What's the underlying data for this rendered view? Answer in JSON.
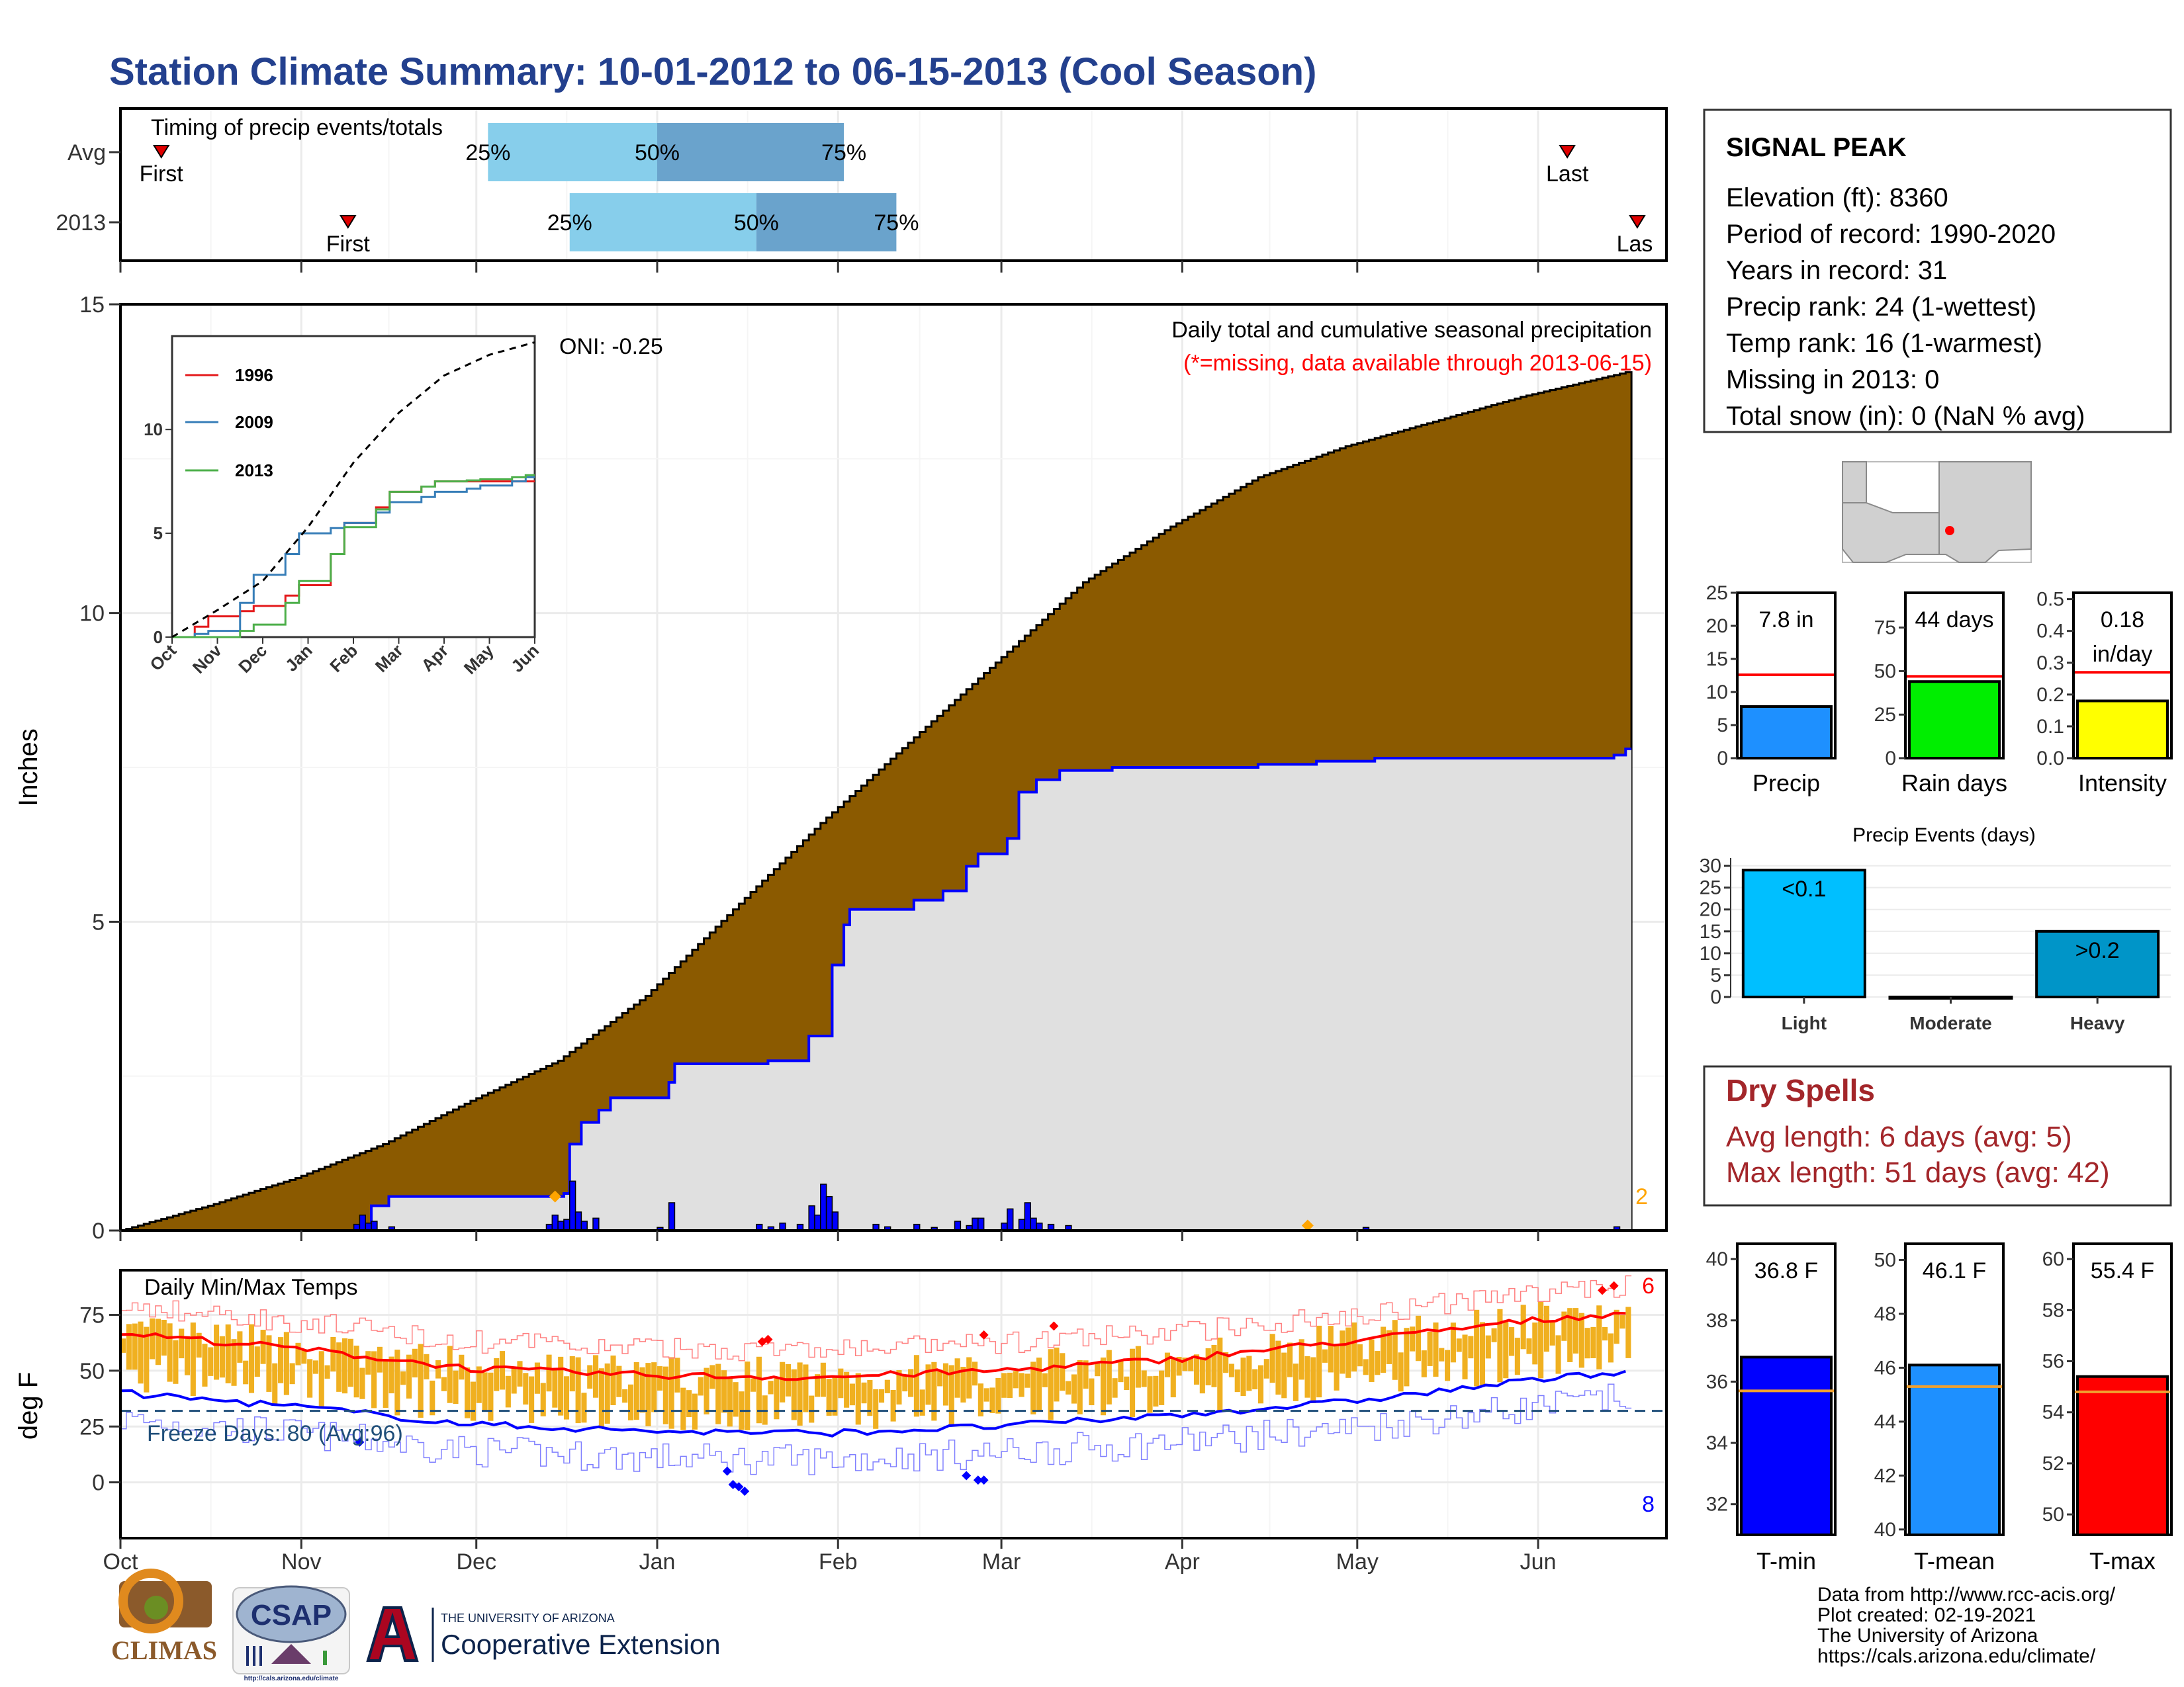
{
  "title": "Station Climate Summary: 10-01-2012 to 06-15-2013 (Cool Season)",
  "months": [
    "Oct",
    "Nov",
    "Dec",
    "Jan",
    "Feb",
    "Mar",
    "Apr",
    "May",
    "Jun"
  ],
  "timing_panel": {
    "label": "Timing of precip events/totals",
    "rows": [
      "Avg",
      "2013"
    ],
    "first_label": "First",
    "last_label": "Last",
    "last_label_clipped": "Las",
    "pct_labels": [
      "25%",
      "50%",
      "75%"
    ]
  },
  "precip_panel": {
    "ylabel": "Inches",
    "yticks": [
      "0",
      "5",
      "10",
      "15"
    ],
    "oni": "ONI: -0.25",
    "caption": "Daily total and cumulative seasonal precipitation",
    "missing_note": "(*=missing, data available through 2013-06-15)",
    "corner_count": "2"
  },
  "inset": {
    "series": [
      "1996",
      "2009",
      "2013"
    ],
    "yticks": [
      "0",
      "5",
      "10"
    ],
    "xticks": [
      "Oct",
      "Nov",
      "Dec",
      "Jan",
      "Feb",
      "Mar",
      "Apr",
      "May",
      "Jun"
    ]
  },
  "temp_panel": {
    "label": "Daily Min/Max Temps",
    "ylabel": "deg F",
    "yticks": [
      "0",
      "25",
      "50",
      "75"
    ],
    "freeze": "Freeze Days: 80 (Avg:96)",
    "top_count": "6",
    "bottom_count": "8"
  },
  "station": {
    "name": "SIGNAL PEAK",
    "lines": [
      "Elevation (ft): 8360",
      "Period of record: 1990-2020",
      "Years in record: 31",
      "Precip rank: 24 (1-wettest)",
      "Temp rank: 16 (1-warmest)",
      "Missing in 2013: 0",
      "Total snow (in): 0 (NaN % avg)"
    ]
  },
  "summary_bars": {
    "precip": {
      "label": "Precip",
      "value_label": "7.8 in",
      "yticks": [
        "0",
        "5",
        "10",
        "15",
        "20",
        "25"
      ]
    },
    "raindays": {
      "label": "Rain days",
      "value_label": "44 days",
      "yticks": [
        "0",
        "25",
        "50",
        "75"
      ]
    },
    "intensity": {
      "label": "Intensity",
      "value_label_1": "0.18",
      "value_label_2": "in/day",
      "yticks": [
        "0.0",
        "0.1",
        "0.2",
        "0.3",
        "0.4",
        "0.5"
      ]
    }
  },
  "precip_events": {
    "title": "Precip Events (days)",
    "yticks": [
      "0",
      "5",
      "10",
      "15",
      "20",
      "25",
      "30"
    ],
    "cats": [
      "Light",
      "Moderate",
      "Heavy"
    ],
    "bar_labels": [
      "<0.1",
      "",
      ">0.2"
    ]
  },
  "dry_spells": {
    "title": "Dry Spells",
    "avg": "Avg length: 6 days (avg: 5)",
    "max": "Max length: 51 days (avg: 42)"
  },
  "temp_bars": {
    "tmin": {
      "label": "T-min",
      "value_label": "36.8 F",
      "yticks": [
        "32",
        "34",
        "36",
        "38",
        "40"
      ]
    },
    "tmean": {
      "label": "T-mean",
      "value_label": "46.1 F",
      "yticks": [
        "40",
        "42",
        "44",
        "46",
        "48",
        "50"
      ]
    },
    "tmax": {
      "label": "T-max",
      "value_label": "55.4 F",
      "yticks": [
        "50",
        "52",
        "54",
        "56",
        "58",
        "60"
      ]
    }
  },
  "footer": {
    "lines": [
      "Data from http://www.rcc-acis.org/",
      "Plot created: 02-19-2021",
      "The University of Arizona",
      "https://cals.arizona.edu/climate/"
    ],
    "ua_small": "THE UNIVERSITY OF ARIZONA",
    "ua_big": "Cooperative Extension",
    "climas": "CLIMAS",
    "csap": "CSAP",
    "csap_url": "http://cals.arizona.edu/climate"
  },
  "chart_data": [
    {
      "type": "bar",
      "name": "timing",
      "rows": [
        "Avg",
        "2013"
      ],
      "first_day": [
        7,
        39
      ],
      "last_day": [
        248,
        260
      ],
      "q25": [
        63,
        77
      ],
      "q50": [
        92,
        109
      ],
      "q75": [
        124,
        133
      ],
      "x_range_days": [
        0,
        265
      ]
    },
    {
      "type": "area",
      "name": "precipitation",
      "ylabel": "Inches",
      "ylim": [
        0,
        15
      ],
      "avg_cumulative": [
        [
          0,
          0
        ],
        [
          15,
          0.4
        ],
        [
          30,
          0.85
        ],
        [
          45,
          1.4
        ],
        [
          60,
          2.1
        ],
        [
          75,
          2.75
        ],
        [
          90,
          3.8
        ],
        [
          105,
          5.2
        ],
        [
          120,
          6.6
        ],
        [
          135,
          7.9
        ],
        [
          150,
          9.2
        ],
        [
          165,
          10.5
        ],
        [
          180,
          11.4
        ],
        [
          195,
          12.2
        ],
        [
          210,
          12.7
        ],
        [
          225,
          13.1
        ],
        [
          240,
          13.5
        ],
        [
          258,
          13.9
        ]
      ],
      "obs_cumulative": [
        [
          0,
          0
        ],
        [
          39,
          0
        ],
        [
          43,
          0.4
        ],
        [
          46,
          0.55
        ],
        [
          76,
          0.6
        ],
        [
          77,
          1.4
        ],
        [
          79,
          1.75
        ],
        [
          82,
          1.95
        ],
        [
          84,
          2.15
        ],
        [
          94,
          2.4
        ],
        [
          95,
          2.7
        ],
        [
          111,
          2.75
        ],
        [
          118,
          3.15
        ],
        [
          122,
          4.3
        ],
        [
          124,
          4.95
        ],
        [
          125,
          5.2
        ],
        [
          136,
          5.35
        ],
        [
          141,
          5.5
        ],
        [
          145,
          5.9
        ],
        [
          147,
          6.1
        ],
        [
          152,
          6.35
        ],
        [
          154,
          7.1
        ],
        [
          157,
          7.3
        ],
        [
          161,
          7.45
        ],
        [
          170,
          7.5
        ],
        [
          195,
          7.55
        ],
        [
          205,
          7.6
        ],
        [
          215,
          7.65
        ],
        [
          256,
          7.7
        ],
        [
          258,
          7.8
        ]
      ],
      "daily_bars": [
        [
          40,
          0.1
        ],
        [
          41,
          0.25
        ],
        [
          42,
          0.12
        ],
        [
          43,
          0.15
        ],
        [
          46,
          0.06
        ],
        [
          73,
          0.1
        ],
        [
          74,
          0.25
        ],
        [
          75,
          0.15
        ],
        [
          76,
          0.18
        ],
        [
          77,
          0.8
        ],
        [
          78,
          0.3
        ],
        [
          79,
          0.15
        ],
        [
          81,
          0.2
        ],
        [
          92,
          0.05
        ],
        [
          94,
          0.45
        ],
        [
          109,
          0.1
        ],
        [
          111,
          0.06
        ],
        [
          113,
          0.12
        ],
        [
          116,
          0.1
        ],
        [
          118,
          0.4
        ],
        [
          119,
          0.25
        ],
        [
          120,
          0.75
        ],
        [
          121,
          0.55
        ],
        [
          122,
          0.3
        ],
        [
          129,
          0.1
        ],
        [
          131,
          0.06
        ],
        [
          136,
          0.1
        ],
        [
          139,
          0.05
        ],
        [
          143,
          0.15
        ],
        [
          145,
          0.08
        ],
        [
          146,
          0.2
        ],
        [
          147,
          0.2
        ],
        [
          151,
          0.12
        ],
        [
          152,
          0.35
        ],
        [
          154,
          0.18
        ],
        [
          155,
          0.45
        ],
        [
          156,
          0.2
        ],
        [
          157,
          0.12
        ],
        [
          159,
          0.1
        ],
        [
          162,
          0.08
        ],
        [
          213,
          0.05
        ],
        [
          256,
          0.06
        ]
      ],
      "missing_days": [
        74,
        203
      ],
      "ONI": -0.25
    },
    {
      "type": "line",
      "name": "inset_cumulative",
      "x": [
        "Oct",
        "Nov",
        "Dec",
        "Jan",
        "Feb",
        "Mar",
        "Apr",
        "May",
        "Jun"
      ],
      "ylim": [
        0,
        14.5
      ],
      "series": [
        {
          "name": "1996",
          "values": [
            0,
            1.0,
            1.5,
            2.5,
            5.5,
            7.0,
            7.5,
            7.5,
            7.5
          ]
        },
        {
          "name": "2009",
          "values": [
            0,
            0.3,
            3.0,
            5.0,
            5.5,
            6.5,
            7.0,
            7.3,
            7.7
          ]
        },
        {
          "name": "2013",
          "values": [
            0,
            0,
            0.6,
            2.7,
            5.3,
            7.0,
            7.5,
            7.6,
            7.8
          ]
        },
        {
          "name": "",
          "values": [
            0,
            1.3,
            2.7,
            5.3,
            8.4,
            10.8,
            12.6,
            13.6,
            14.2
          ]
        }
      ]
    },
    {
      "type": "line",
      "name": "temperature",
      "ylabel": "deg F",
      "ylim": [
        -25,
        95
      ],
      "avg_max": [
        [
          0,
          67
        ],
        [
          30,
          60
        ],
        [
          60,
          51
        ],
        [
          90,
          48
        ],
        [
          120,
          47
        ],
        [
          150,
          50
        ],
        [
          180,
          55
        ],
        [
          210,
          63
        ],
        [
          240,
          72
        ],
        [
          258,
          76
        ]
      ],
      "avg_min": [
        [
          0,
          40
        ],
        [
          30,
          34
        ],
        [
          60,
          26
        ],
        [
          90,
          23
        ],
        [
          120,
          22
        ],
        [
          150,
          25
        ],
        [
          180,
          30
        ],
        [
          210,
          36
        ],
        [
          240,
          45
        ],
        [
          258,
          50
        ]
      ],
      "freeze_line": 32,
      "freeze_days": 80,
      "freeze_days_avg": 96
    },
    {
      "type": "bar",
      "name": "season_totals",
      "categories": [
        "Precip",
        "Rain days",
        "Intensity"
      ],
      "values": [
        7.8,
        44,
        0.18
      ],
      "averages": [
        12.6,
        47,
        0.27
      ]
    },
    {
      "type": "bar",
      "name": "precip_events",
      "categories": [
        "Light",
        "Moderate",
        "Heavy"
      ],
      "values": [
        29,
        0,
        15
      ]
    },
    {
      "type": "bar",
      "name": "temperature_means",
      "categories": [
        "T-min",
        "T-mean",
        "T-max"
      ],
      "values": [
        36.8,
        46.1,
        55.4
      ],
      "averages": [
        35.7,
        45.3,
        54.8
      ]
    }
  ]
}
